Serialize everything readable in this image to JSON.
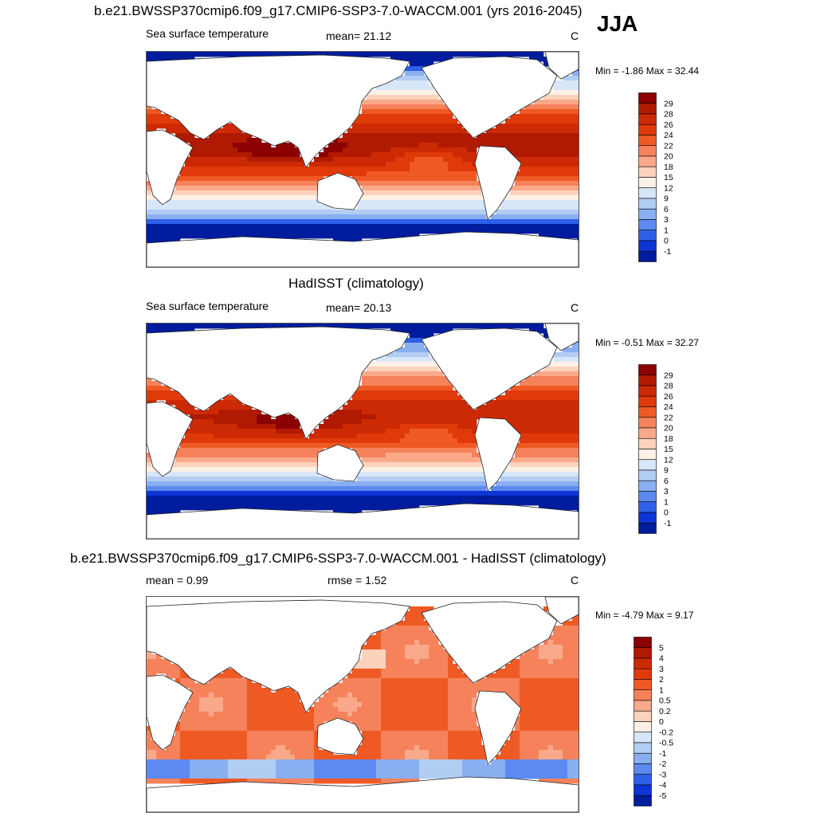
{
  "season_label": "JJA",
  "panels": [
    {
      "title": "b.e21.BWSSP370cmip6.f09_g17.CMIP6-SSP3-7.0-WACCM.001 (yrs 2016-2045)",
      "left_label": "Sea surface temperature",
      "mid_label": "mean=  21.12",
      "units": "C",
      "minmax": "Min =  -1.86 Max =  32.44"
    },
    {
      "title": "HadISST (climatology)",
      "left_label": "Sea surface temperature",
      "mid_label": "mean=  20.13",
      "units": "C",
      "minmax": "Min =  -0.51 Max =  32.27"
    },
    {
      "title": "b.e21.BWSSP370cmip6.f09_g17.CMIP6-SSP3-7.0-WACCM.001 - HadISST (climatology)",
      "left_label": "mean =   0.99",
      "mid_label": "rmse =   1.52",
      "units": "C",
      "minmax": "Min =  -4.79 Max =   9.17"
    }
  ],
  "chart_data": [
    {
      "type": "heatmap",
      "title": "b.e21.BWSSP370cmip6.f09_g17.CMIP6-SSP3-7.0-WACCM.001 (yrs 2016-2045)",
      "variable": "Sea surface temperature",
      "units": "C",
      "mean": 21.12,
      "min": -1.86,
      "max": 32.44,
      "colorbar_labels": [
        "29",
        "28",
        "26",
        "24",
        "22",
        "20",
        "18",
        "15",
        "12",
        "9",
        "6",
        "3",
        "1",
        "0",
        "-1"
      ],
      "colorbar_colors": [
        "#8b0000",
        "#b01a00",
        "#cc2a04",
        "#e03a0a",
        "#ef5a24",
        "#f5825a",
        "#f9a98a",
        "#fcd2bd",
        "#fdf0e6",
        "#d7e6f8",
        "#b2cdf2",
        "#89aff0",
        "#5c8af0",
        "#2e60ea",
        "#0b35d4",
        "#001c9e"
      ]
    },
    {
      "type": "heatmap",
      "title": "HadISST (climatology)",
      "variable": "Sea surface temperature",
      "units": "C",
      "mean": 20.13,
      "min": -0.51,
      "max": 32.27,
      "colorbar_labels": [
        "29",
        "28",
        "26",
        "24",
        "22",
        "20",
        "18",
        "15",
        "12",
        "9",
        "6",
        "3",
        "1",
        "0",
        "-1"
      ],
      "colorbar_colors": [
        "#8b0000",
        "#b01a00",
        "#cc2a04",
        "#e03a0a",
        "#ef5a24",
        "#f5825a",
        "#f9a98a",
        "#fcd2bd",
        "#fdf0e6",
        "#d7e6f8",
        "#b2cdf2",
        "#89aff0",
        "#5c8af0",
        "#2e60ea",
        "#0b35d4",
        "#001c9e"
      ]
    },
    {
      "type": "heatmap",
      "title": "b.e21.BWSSP370cmip6.f09_g17.CMIP6-SSP3-7.0-WACCM.001 - HadISST (climatology)",
      "units": "C",
      "mean": 0.99,
      "rmse": 1.52,
      "min": -4.79,
      "max": 9.17,
      "colorbar_labels": [
        "5",
        "4",
        "3",
        "2",
        "1",
        "0.5",
        "0.2",
        "0",
        "-0.2",
        "-0.5",
        "-1",
        "-2",
        "-3",
        "-4",
        "-5"
      ],
      "colorbar_colors": [
        "#8b0000",
        "#b01a00",
        "#cc2a04",
        "#e03a0a",
        "#ef5a24",
        "#f5825a",
        "#f9a98a",
        "#fcd2bd",
        "#fdf0e6",
        "#d7e6f8",
        "#b2cdf2",
        "#89aff0",
        "#5c8af0",
        "#2e60ea",
        "#0b35d4",
        "#001c9e"
      ]
    }
  ]
}
